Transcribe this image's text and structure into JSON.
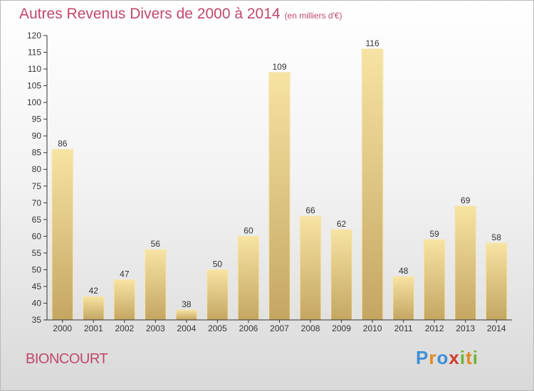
{
  "header": {
    "title": "Autres Revenus Divers de 2000 à 2014",
    "unit_note": "(en milliers d'€)"
  },
  "footer": {
    "town": "BIONCOURT",
    "brand": "Proxiti"
  },
  "colors": {
    "title": "#c0486a",
    "bar_light": "#f7e3a3",
    "bar_dark": "#c4a662",
    "axis": "#333333"
  },
  "chart_data": {
    "type": "bar",
    "categories": [
      "2000",
      "2001",
      "2002",
      "2003",
      "2004",
      "2005",
      "2006",
      "2007",
      "2008",
      "2009",
      "2010",
      "2011",
      "2012",
      "2013",
      "2014"
    ],
    "values": [
      86,
      42,
      47,
      56,
      38,
      50,
      60,
      109,
      66,
      62,
      116,
      48,
      59,
      69,
      58
    ],
    "title": "Autres Revenus Divers de 2000 à 2014",
    "xlabel": "",
    "ylabel": "",
    "ylim": [
      35,
      120
    ],
    "yticks": [
      35,
      40,
      45,
      50,
      55,
      60,
      65,
      70,
      75,
      80,
      85,
      90,
      95,
      100,
      105,
      110,
      115,
      120
    ],
    "grid": false,
    "legend": "none",
    "data_labels": true
  }
}
